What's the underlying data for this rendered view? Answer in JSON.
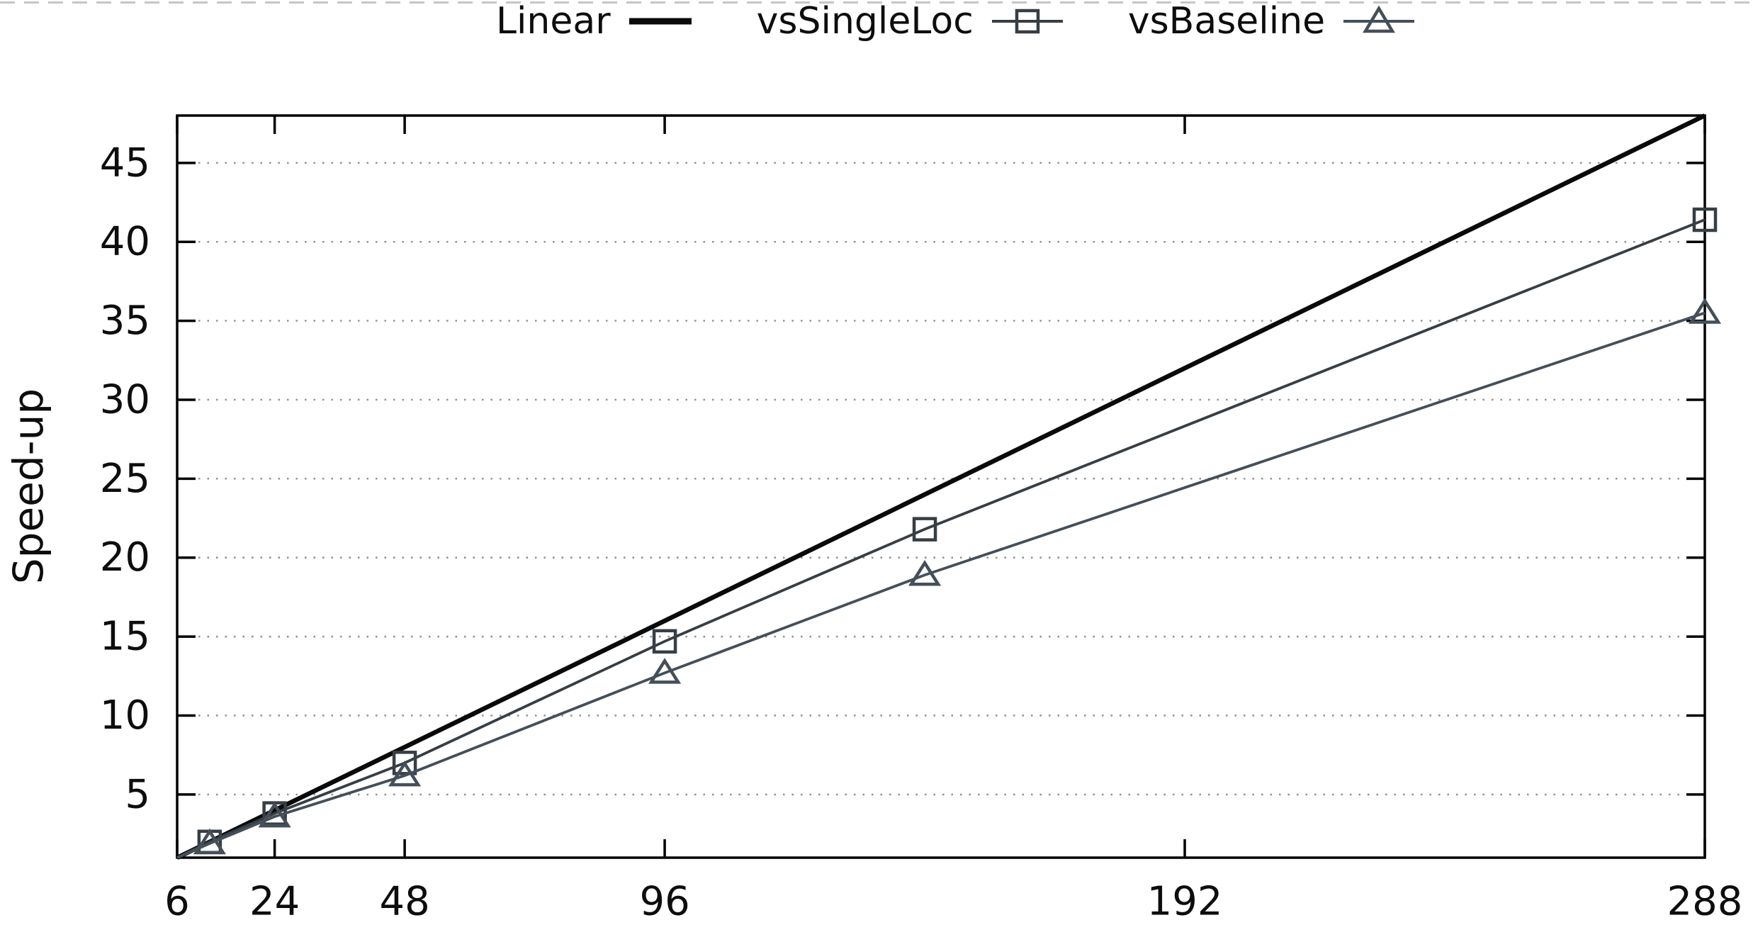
{
  "legend": {
    "items": [
      {
        "icon": "linear-line-sample"
      },
      {
        "icon": "square-marker-sample"
      },
      {
        "icon": "triangle-marker-sample"
      }
    ]
  },
  "colors": {
    "axis": "#000000",
    "tick_text": "#0d0d0d",
    "grid": "#8f8f8f",
    "top_divider": "#c6c6c6"
  },
  "chart_data": {
    "type": "line",
    "title": "",
    "xlabel": "",
    "ylabel": "Speed-up",
    "xlim": [
      6,
      288
    ],
    "ylim": [
      1,
      48
    ],
    "x_ticks": [
      6,
      24,
      48,
      96,
      192,
      288
    ],
    "y_ticks": [
      5,
      10,
      15,
      20,
      25,
      30,
      35,
      40,
      45
    ],
    "grid": "horizontal dotted lines at y ticks",
    "legend_position": "top center, outside plot",
    "series": [
      {
        "name": "Linear",
        "marker": "none",
        "color": "#0a0a0a",
        "line_width": 6.5,
        "x": [
          6,
          288
        ],
        "y": [
          1,
          48
        ]
      },
      {
        "name": "vsSingleLoc",
        "marker": "square",
        "color": "#373e44",
        "line_width": 3.8,
        "x": [
          6,
          12,
          24,
          48,
          96,
          144,
          288
        ],
        "y": [
          1.0,
          2.0,
          3.8,
          7.0,
          14.7,
          21.8,
          41.4
        ]
      },
      {
        "name": "vsBaseline",
        "marker": "triangle",
        "color": "#454f59",
        "line_width": 3.8,
        "x": [
          6,
          12,
          24,
          48,
          96,
          144,
          288
        ],
        "y": [
          1.0,
          1.9,
          3.6,
          6.2,
          12.7,
          18.9,
          35.5
        ]
      }
    ]
  }
}
